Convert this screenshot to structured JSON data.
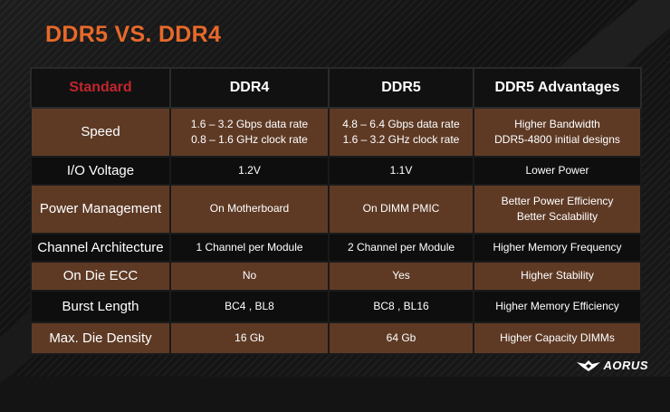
{
  "title": "DDR5 VS. DDR4",
  "table": {
    "headers": [
      "Standard",
      "DDR4",
      "DDR5",
      "DDR5 Advantages"
    ],
    "rows": [
      {
        "label": "Speed",
        "ddr4": [
          "1.6 – 3.2 Gbps data rate",
          "0.8 – 1.6 GHz clock rate"
        ],
        "ddr5": [
          "4.8 – 6.4 Gbps data rate",
          "1.6 – 3.2 GHz clock rate"
        ],
        "adv": [
          "Higher Bandwidth",
          "DDR5-4800 initial designs"
        ]
      },
      {
        "label": "I/O Voltage",
        "ddr4": [
          "1.2V"
        ],
        "ddr5": [
          "1.1V"
        ],
        "adv": [
          "Lower Power"
        ]
      },
      {
        "label": "Power Management",
        "ddr4": [
          "On Motherboard"
        ],
        "ddr5": [
          "On DIMM PMIC"
        ],
        "adv": [
          "Better Power Efficiency",
          "Better Scalability"
        ]
      },
      {
        "label": "Channel Architecture",
        "ddr4": [
          "1 Channel per Module"
        ],
        "ddr5": [
          "2 Channel per Module"
        ],
        "adv": [
          "Higher Memory Frequency"
        ]
      },
      {
        "label": "On Die ECC",
        "ddr4": [
          "No"
        ],
        "ddr5": [
          "Yes"
        ],
        "adv": [
          "Higher Stability"
        ]
      },
      {
        "label": "Burst Length",
        "ddr4": [
          "BC4 , BL8"
        ],
        "ddr5": [
          "BC8 , BL16"
        ],
        "adv": [
          "Higher Memory Efficiency"
        ]
      },
      {
        "label": "Max. Die Density",
        "ddr4": [
          "16 Gb"
        ],
        "ddr5": [
          "64 Gb"
        ],
        "adv": [
          "Higher Capacity DIMMs"
        ]
      }
    ]
  },
  "logo": {
    "text": "AORUS",
    "icon": "aorus-eagle-icon"
  },
  "colors": {
    "accent": "#e8692a",
    "standard_header": "#c0262e",
    "row_brown": "#5e3a25",
    "row_dark": "#0e0e0e"
  }
}
